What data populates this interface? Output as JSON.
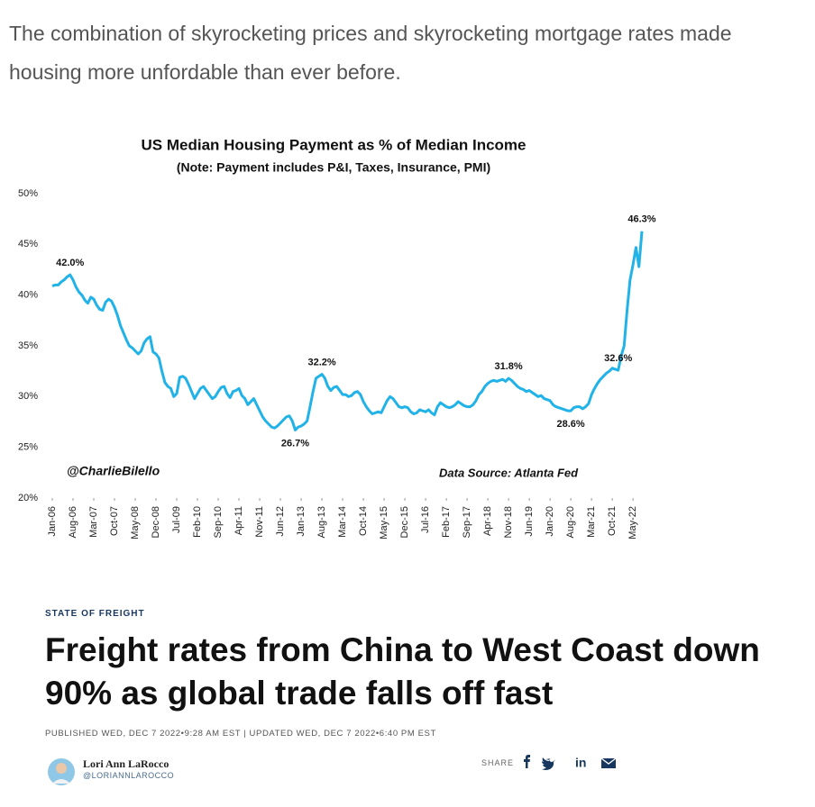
{
  "intro": "The combination of skyrocketing prices and skyrocketing mortgage rates made housing more unfordable than ever before.",
  "chart_data": {
    "type": "line",
    "title": "US Median Housing Payment as % of Median Income",
    "subtitle": "(Note: Payment includes P&I, Taxes, Insurance, PMI)",
    "annotations": [
      "@CharlieBilello",
      "Data Source: Atlanta Fed"
    ],
    "categories": [
      "Jan-06",
      null,
      null,
      null,
      null,
      null,
      null,
      "Aug-06",
      null,
      null,
      null,
      null,
      null,
      null,
      "Mar-07",
      null,
      null,
      null,
      null,
      null,
      null,
      "Oct-07",
      null,
      null,
      null,
      null,
      null,
      null,
      "May-08",
      null,
      null,
      null,
      null,
      null,
      null,
      "Dec-08",
      null,
      null,
      null,
      null,
      null,
      null,
      "Jul-09",
      null,
      null,
      null,
      null,
      null,
      null,
      "Feb-10",
      null,
      null,
      null,
      null,
      null,
      null,
      "Sep-10",
      null,
      null,
      null,
      null,
      null,
      null,
      "Apr-11",
      null,
      null,
      null,
      null,
      null,
      null,
      "Nov-11",
      null,
      null,
      null,
      null,
      null,
      null,
      "Jun-12",
      null,
      null,
      null,
      null,
      null,
      null,
      "Jan-13",
      null,
      null,
      null,
      null,
      null,
      null,
      "Aug-13",
      null,
      null,
      null,
      null,
      null,
      null,
      "Mar-14",
      null,
      null,
      null,
      null,
      null,
      null,
      "Oct-14",
      null,
      null,
      null,
      null,
      null,
      null,
      "May-15",
      null,
      null,
      null,
      null,
      null,
      null,
      "Dec-15",
      null,
      null,
      null,
      null,
      null,
      null,
      "Jul-16",
      null,
      null,
      null,
      null,
      null,
      null,
      "Feb-17",
      null,
      null,
      null,
      null,
      null,
      null,
      "Sep-17",
      null,
      null,
      null,
      null,
      null,
      null,
      "Apr-18",
      null,
      null,
      null,
      null,
      null,
      null,
      "Nov-18",
      null,
      null,
      null,
      null,
      null,
      null,
      "Jun-19",
      null,
      null,
      null,
      null,
      null,
      null,
      "Jan-20",
      null,
      null,
      null,
      null,
      null,
      null,
      "Aug-20",
      null,
      null,
      null,
      null,
      null,
      null,
      "Mar-21",
      null,
      null,
      null,
      null,
      null,
      null,
      "Oct-21",
      null,
      null,
      null,
      null,
      null,
      null,
      "May-22",
      null,
      null,
      null
    ],
    "values": [
      40.9,
      41.0,
      41.0,
      41.3,
      41.5,
      41.8,
      42.0,
      41.5,
      40.8,
      40.3,
      40.0,
      39.5,
      39.2,
      39.8,
      39.6,
      39.0,
      38.6,
      38.5,
      39.3,
      39.6,
      39.4,
      38.8,
      38.0,
      37.0,
      36.3,
      35.6,
      35.0,
      34.8,
      34.5,
      34.2,
      34.5,
      35.3,
      35.7,
      35.9,
      34.4,
      34.2,
      33.8,
      32.5,
      31.4,
      31.0,
      30.8,
      30.0,
      30.3,
      31.9,
      32.0,
      31.8,
      31.2,
      30.5,
      29.8,
      30.3,
      30.8,
      31.0,
      30.6,
      30.2,
      29.8,
      30.0,
      30.5,
      30.9,
      31.0,
      30.3,
      29.9,
      30.5,
      30.6,
      30.8,
      30.1,
      29.8,
      29.2,
      29.5,
      29.8,
      29.2,
      28.6,
      28.0,
      27.6,
      27.3,
      27.0,
      26.9,
      27.1,
      27.4,
      27.7,
      28.0,
      28.1,
      27.6,
      26.7,
      27.0,
      27.1,
      27.3,
      27.6,
      29.0,
      30.5,
      31.8,
      32.0,
      32.2,
      31.8,
      31.0,
      30.6,
      30.9,
      31.0,
      30.6,
      30.2,
      30.2,
      30.0,
      30.1,
      30.4,
      30.5,
      30.2,
      29.5,
      29.0,
      28.6,
      28.3,
      28.4,
      28.5,
      28.4,
      29.0,
      29.6,
      30.0,
      29.8,
      29.4,
      29.0,
      28.9,
      29.0,
      28.9,
      28.5,
      28.3,
      28.4,
      28.7,
      28.6,
      28.5,
      28.7,
      28.4,
      28.2,
      29.0,
      29.4,
      29.2,
      29.0,
      28.9,
      29.0,
      29.2,
      29.5,
      29.3,
      29.1,
      29.0,
      29.0,
      29.2,
      29.6,
      30.2,
      30.5,
      31.0,
      31.3,
      31.5,
      31.6,
      31.5,
      31.6,
      31.7,
      31.5,
      31.8,
      31.6,
      31.3,
      31.0,
      30.8,
      30.7,
      30.5,
      30.6,
      30.4,
      30.2,
      30.0,
      30.1,
      29.8,
      29.7,
      29.6,
      29.2,
      29.0,
      28.9,
      28.8,
      28.7,
      28.6,
      28.6,
      28.9,
      29.0,
      29.0,
      28.8,
      29.0,
      29.3,
      30.2,
      30.8,
      31.3,
      31.7,
      32.0,
      32.3,
      32.5,
      32.8,
      32.7,
      32.6,
      34.0,
      35.0,
      38.5,
      41.5,
      43.0,
      44.7,
      42.8,
      46.3
    ],
    "value_labels": [
      null,
      null,
      null,
      null,
      null,
      null,
      "42.0%",
      null,
      null,
      null,
      null,
      null,
      null,
      null,
      null,
      null,
      null,
      null,
      null,
      null,
      null,
      null,
      null,
      null,
      null,
      null,
      null,
      null,
      null,
      null,
      null,
      null,
      null,
      null,
      null,
      null,
      null,
      null,
      null,
      null,
      null,
      null,
      null,
      null,
      null,
      null,
      null,
      null,
      null,
      null,
      null,
      null,
      null,
      null,
      null,
      null,
      null,
      null,
      null,
      null,
      null,
      null,
      null,
      null,
      null,
      null,
      null,
      null,
      null,
      null,
      null,
      null,
      null,
      null,
      null,
      null,
      null,
      null,
      null,
      null,
      null,
      null,
      "26.7%",
      null,
      null,
      null,
      null,
      null,
      null,
      null,
      null,
      "32.2%",
      null,
      null,
      null,
      null,
      null,
      null,
      null,
      null,
      null,
      null,
      null,
      null,
      null,
      null,
      null,
      null,
      null,
      null,
      null,
      null,
      null,
      null,
      null,
      null,
      null,
      null,
      null,
      null,
      null,
      null,
      null,
      null,
      null,
      null,
      null,
      null,
      null,
      null,
      null,
      null,
      null,
      null,
      null,
      null,
      null,
      null,
      null,
      null,
      null,
      null,
      null,
      null,
      null,
      null,
      null,
      null,
      null,
      null,
      null,
      null,
      null,
      null,
      "31.8%",
      null,
      null,
      null,
      null,
      null,
      null,
      null,
      null,
      null,
      null,
      null,
      null,
      null,
      null,
      null,
      null,
      null,
      null,
      null,
      null,
      "28.6%",
      null,
      null,
      null,
      null,
      null,
      null,
      null,
      null,
      null,
      null,
      null,
      null,
      null,
      null,
      null,
      "32.6%",
      null,
      null,
      null,
      null,
      null,
      null,
      null,
      "46.3%"
    ],
    "color": "#21b3e8",
    "ylim": [
      20,
      50
    ],
    "yticks": [
      {
        "value": 20,
        "label": "20%"
      },
      {
        "value": 25,
        "label": "25%"
      },
      {
        "value": 30,
        "label": "30%"
      },
      {
        "value": 35,
        "label": "35%"
      },
      {
        "value": 40,
        "label": "40%"
      },
      {
        "value": 45,
        "label": "45%"
      },
      {
        "value": 50,
        "label": "50%"
      }
    ],
    "grid": false
  },
  "article": {
    "section": "STATE OF FREIGHT",
    "headline": "Freight rates from China to West Coast down 90% as global trade falls off fast",
    "dateline": "PUBLISHED WED, DEC 7 2022•9:28 AM EST | UPDATED WED, DEC 7 2022•6:40 PM EST",
    "author": "Lori Ann LaRocco",
    "handle": "@LORIANNLAROCCO",
    "share": "SHARE"
  }
}
